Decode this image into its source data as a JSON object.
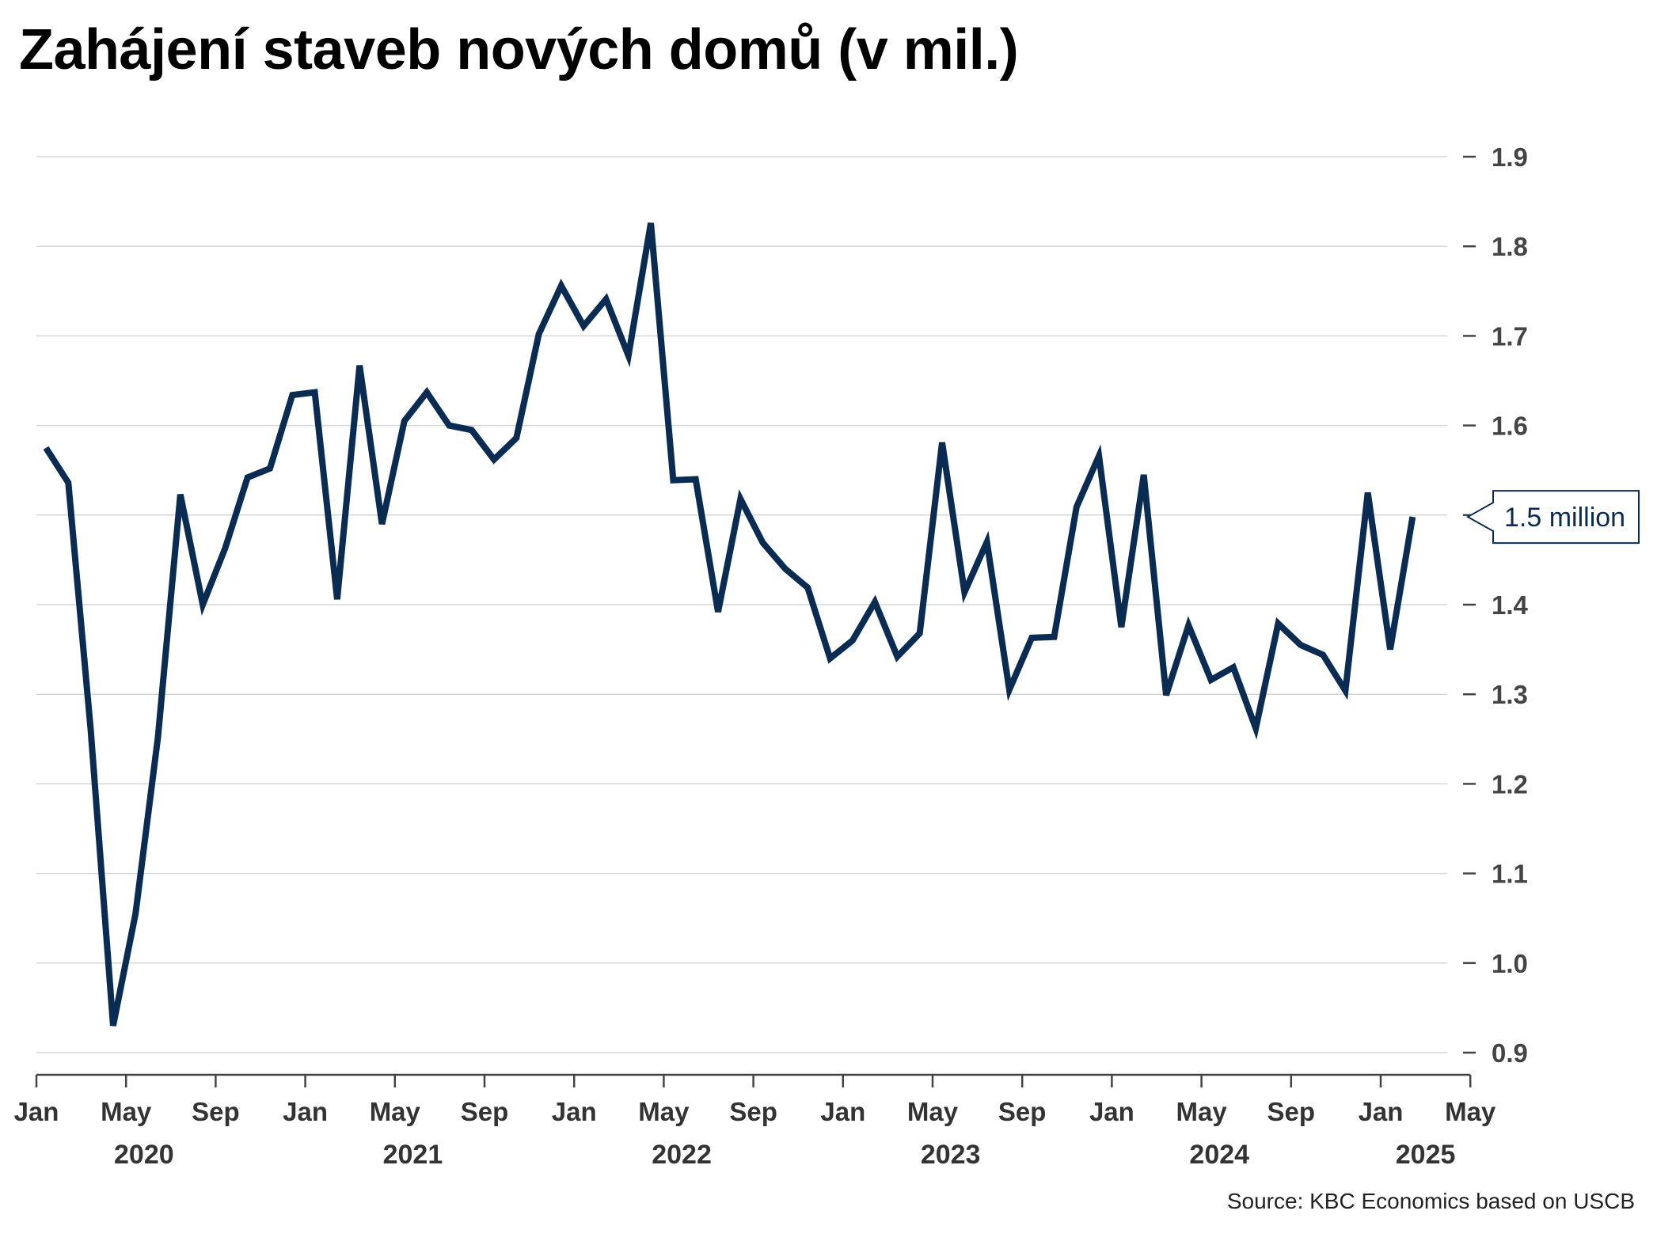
{
  "title": "Zahájení staveb nových domů (v mil.)",
  "source": "Source: KBC Economics based on USCB",
  "chart_data": {
    "type": "line",
    "title": "Zahájení staveb nových domů (v mil.)",
    "xlabel": "",
    "ylabel": "",
    "ylim": [
      0.9,
      1.9
    ],
    "y_ticks": [
      "0.9",
      "1.0",
      "1.1",
      "1.2",
      "1.3",
      "1.4",
      "1.5",
      "1.6",
      "1.7",
      "1.8",
      "1.9"
    ],
    "y_axis_position": "right",
    "grid": true,
    "line_color": "#0b2c52",
    "x_tick_labels": [
      "Jan",
      "May",
      "Sep",
      "Jan",
      "May",
      "Sep",
      "Jan",
      "May",
      "Sep",
      "Jan",
      "May",
      "Sep",
      "Jan",
      "May",
      "Sep",
      "Jan",
      "May"
    ],
    "x_year_labels": [
      "2020",
      "2021",
      "2022",
      "2023",
      "2024",
      "2025"
    ],
    "x_start": "2020-01",
    "callout": "1.5 million",
    "series": [
      {
        "values": [
          1.575,
          1.536,
          1.26,
          0.93,
          1.055,
          1.252,
          1.523,
          1.4,
          1.463,
          1.542,
          1.552,
          1.634,
          1.637,
          1.406,
          1.667,
          1.49,
          1.605,
          1.637,
          1.6,
          1.595,
          1.562,
          1.586,
          1.702,
          1.756,
          1.711,
          1.741,
          1.678,
          1.826,
          1.539,
          1.54,
          1.392,
          1.518,
          1.469,
          1.44,
          1.419,
          1.34,
          1.36,
          1.403,
          1.342,
          1.368,
          1.581,
          1.414,
          1.47,
          1.305,
          1.363,
          1.364,
          1.509,
          1.566,
          1.375,
          1.545,
          1.299,
          1.377,
          1.316,
          1.33,
          1.262,
          1.379,
          1.355,
          1.344,
          1.304,
          1.525,
          1.35,
          1.498
        ]
      }
    ]
  }
}
